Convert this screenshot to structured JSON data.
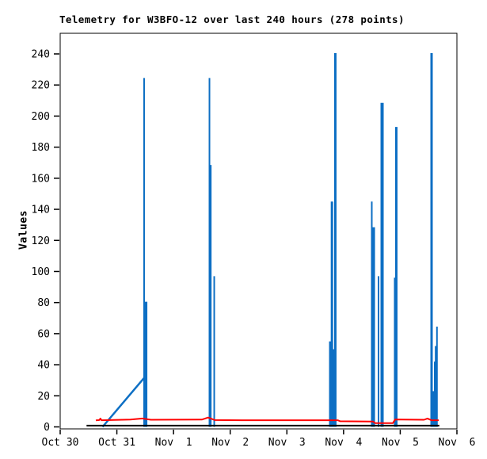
{
  "chart_data": {
    "type": "line",
    "title": "Telemetry for W3BFO-12 over last 240 hours (278 points)",
    "xlabel": "",
    "ylabel": "Values",
    "grid": false,
    "legend": false,
    "colors": {
      "blue": "#0d6fc4",
      "red": "#ff0000",
      "black": "#000000",
      "frame": "#000000"
    },
    "x_axis": {
      "tick_days": [
        0,
        1,
        2,
        3,
        4,
        5,
        6,
        7
      ],
      "tick_labels": [
        "Oct 30",
        "Oct 31",
        "Nov  1",
        "Nov  2",
        "Nov  3",
        "Nov  4",
        "Nov  5",
        "Nov  6"
      ],
      "range_days": [
        0,
        7
      ]
    },
    "y_axis": {
      "ticks": [
        0,
        20,
        40,
        60,
        80,
        100,
        120,
        140,
        160,
        180,
        200,
        220,
        240
      ],
      "min": 0,
      "max": 253
    },
    "series": [
      {
        "name": "blue-telemetry-spikes",
        "color_key": "blue",
        "type": "spikes",
        "points": [
          [
            1.481,
            224.5,
            2
          ],
          [
            1.51,
            80.5,
            4
          ],
          [
            2.634,
            224.5,
            2
          ],
          [
            2.65,
            168.5,
            3
          ],
          [
            2.718,
            97,
            2
          ],
          [
            4.765,
            55,
            3
          ],
          [
            4.795,
            145,
            3
          ],
          [
            4.825,
            50,
            3
          ],
          [
            4.855,
            240.5,
            3
          ],
          [
            5.498,
            145,
            2
          ],
          [
            5.527,
            128.5,
            4
          ],
          [
            5.617,
            97,
            2
          ],
          [
            5.68,
            208.5,
            4
          ],
          [
            5.903,
            96,
            2
          ],
          [
            5.931,
            193,
            3
          ],
          [
            6.553,
            240.5,
            3
          ],
          [
            6.588,
            23,
            2
          ],
          [
            6.616,
            42,
            3
          ],
          [
            6.632,
            52,
            3
          ],
          [
            6.648,
            64.5,
            2
          ]
        ]
      },
      {
        "name": "blue-ramp",
        "color_key": "blue",
        "type": "polyline",
        "stroke_width": 2.5,
        "points": [
          [
            0.747,
            0
          ],
          [
            1.481,
            31.5
          ]
        ]
      },
      {
        "name": "red-telemetry",
        "color_key": "red",
        "type": "polyline",
        "stroke_width": 2,
        "points": [
          [
            0.629,
            4.2
          ],
          [
            0.69,
            4.4
          ],
          [
            0.71,
            5.4
          ],
          [
            0.73,
            4.3
          ],
          [
            1.24,
            4.7
          ],
          [
            1.45,
            5.4
          ],
          [
            1.6,
            4.6
          ],
          [
            2.5,
            4.7
          ],
          [
            2.61,
            6.0
          ],
          [
            2.73,
            4.4
          ],
          [
            3.2,
            4.3
          ],
          [
            4.9,
            4.3
          ],
          [
            4.94,
            3.6
          ],
          [
            5.52,
            3.4
          ],
          [
            5.56,
            2.4
          ],
          [
            5.87,
            2.4
          ],
          [
            5.91,
            4.8
          ],
          [
            6.42,
            4.6
          ],
          [
            6.48,
            5.4
          ],
          [
            6.55,
            4.3
          ],
          [
            6.68,
            4.3
          ]
        ]
      },
      {
        "name": "black-zero-line",
        "color_key": "black",
        "type": "polyline",
        "stroke_width": 2,
        "points": [
          [
            0.465,
            0.8
          ],
          [
            6.69,
            0.8
          ]
        ]
      }
    ]
  }
}
